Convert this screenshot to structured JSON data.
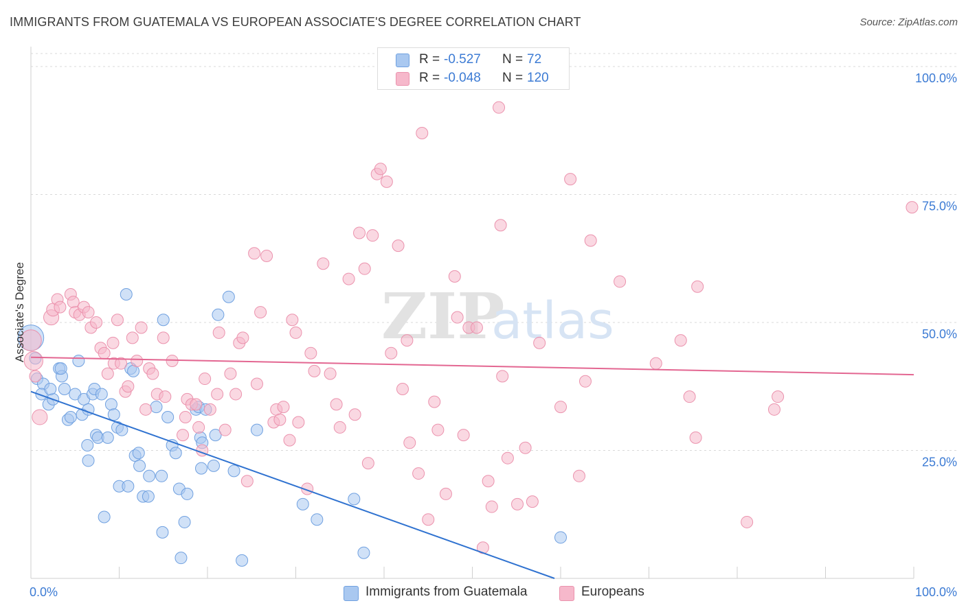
{
  "title": "IMMIGRANTS FROM GUATEMALA VS EUROPEAN ASSOCIATE'S DEGREE CORRELATION CHART",
  "source": "Source: ZipAtlas.com",
  "watermark": {
    "zip": "ZIP",
    "atlas": "atlas"
  },
  "legend": {
    "r_label": "R =",
    "n_label": "N =",
    "series1": {
      "r": "-0.527",
      "n": "72",
      "color": "#a9c8f0"
    },
    "series2": {
      "r": "-0.048",
      "n": "120",
      "color": "#f6b8cb"
    }
  },
  "bottom_legend": {
    "series1": "Immigrants from Guatemala",
    "series2": "Europeans"
  },
  "chart_data": {
    "type": "scatter",
    "xlabel": "",
    "ylabel": "Associate's Degree",
    "xlim": [
      0,
      100
    ],
    "ylim": [
      0,
      100
    ],
    "x_tick_labels": {
      "left": "0.0%",
      "right": "100.0%"
    },
    "y_tick_labels": [
      "25.0%",
      "50.0%",
      "75.0%",
      "100.0%"
    ],
    "y_ticks": [
      25,
      50,
      75,
      100
    ],
    "grid": true,
    "series": [
      {
        "name": "Immigrants from Guatemala",
        "color": "#a9c8f0",
        "stroke": "#6fa0e0",
        "trend": {
          "x0": 0,
          "y0": 36.5,
          "x1": 59.3,
          "y1": 0,
          "color": "#2f72d0"
        },
        "points": [
          [
            0,
            47,
            2.2
          ],
          [
            0.5,
            43,
            1
          ],
          [
            0.7,
            39,
            1
          ],
          [
            1.4,
            38,
            1
          ],
          [
            1.2,
            36,
            1
          ],
          [
            2,
            34,
            1
          ],
          [
            2.5,
            35,
            1
          ],
          [
            2.2,
            37,
            1
          ],
          [
            3.2,
            41,
            1
          ],
          [
            3.8,
            37,
            1
          ],
          [
            3.5,
            39.5,
            1
          ],
          [
            4.2,
            31,
            1
          ],
          [
            4.5,
            31.5,
            1
          ],
          [
            5,
            36,
            1
          ],
          [
            5.4,
            42.5,
            1
          ],
          [
            5.8,
            32,
            1
          ],
          [
            6,
            35,
            1
          ],
          [
            6.5,
            33,
            1
          ],
          [
            7,
            36,
            1
          ],
          [
            7.2,
            37,
            1
          ],
          [
            6.4,
            26,
            1
          ],
          [
            6.5,
            23,
            1
          ],
          [
            7.4,
            28,
            1
          ],
          [
            7.6,
            27.5,
            1
          ],
          [
            8,
            36,
            1
          ],
          [
            8.7,
            27.5,
            1
          ],
          [
            9.1,
            34,
            1
          ],
          [
            9.4,
            32,
            1
          ],
          [
            9.8,
            29.5,
            1
          ],
          [
            10.3,
            29,
            1
          ],
          [
            8.3,
            12,
            1
          ],
          [
            10,
            18,
            1
          ],
          [
            11,
            18,
            1
          ],
          [
            10.8,
            55.5,
            1
          ],
          [
            11.3,
            41,
            1
          ],
          [
            11.6,
            40.5,
            1
          ],
          [
            11.8,
            24,
            1
          ],
          [
            12.2,
            24.5,
            1
          ],
          [
            12.3,
            22,
            1
          ],
          [
            12.7,
            16,
            1
          ],
          [
            13.3,
            16,
            1
          ],
          [
            13.4,
            20,
            1
          ],
          [
            14.2,
            33.5,
            1
          ],
          [
            15,
            50.5,
            1
          ],
          [
            14.9,
            9,
            1
          ],
          [
            14.8,
            20,
            1
          ],
          [
            15.5,
            31.5,
            1
          ],
          [
            16,
            26,
            1
          ],
          [
            16.4,
            24.5,
            1
          ],
          [
            16.8,
            17.5,
            1
          ],
          [
            17,
            4,
            1
          ],
          [
            17.4,
            11,
            1
          ],
          [
            17.7,
            16.5,
            1
          ],
          [
            18.7,
            33,
            1
          ],
          [
            19,
            33.5,
            1
          ],
          [
            19.2,
            27.5,
            1
          ],
          [
            19.4,
            26.5,
            1
          ],
          [
            19.3,
            21.5,
            1
          ],
          [
            19.8,
            33,
            1
          ],
          [
            20.7,
            22,
            1
          ],
          [
            20.9,
            28,
            1
          ],
          [
            21.2,
            51.5,
            1
          ],
          [
            22.4,
            55,
            1
          ],
          [
            23,
            21,
            1
          ],
          [
            23.9,
            3.5,
            1
          ],
          [
            25.6,
            29,
            1
          ],
          [
            30.8,
            14.5,
            1
          ],
          [
            32.4,
            11.5,
            1
          ],
          [
            36.6,
            15.5,
            1
          ],
          [
            37.7,
            5,
            1
          ],
          [
            60,
            8,
            1
          ],
          [
            3.4,
            41,
            1
          ]
        ]
      },
      {
        "name": "Europeans",
        "color": "#f6b8cb",
        "stroke": "#eb92ad",
        "trend": {
          "x0": 0,
          "y0": 43.2,
          "x1": 100,
          "y1": 39.8,
          "color": "#e36691"
        },
        "points": [
          [
            0,
            46.5,
            1.8
          ],
          [
            0.3,
            42.5,
            1.6
          ],
          [
            0.5,
            39.5,
            1
          ],
          [
            1,
            31.5,
            1.3
          ],
          [
            2.3,
            51,
            1.3
          ],
          [
            2.5,
            52.5,
            1.1
          ],
          [
            3,
            54.5,
            1
          ],
          [
            3.3,
            53,
            1
          ],
          [
            4.5,
            55.5,
            1
          ],
          [
            4.8,
            54,
            1
          ],
          [
            5,
            52,
            1
          ],
          [
            5.5,
            51.5,
            1
          ],
          [
            6,
            53,
            1
          ],
          [
            6.5,
            52,
            1
          ],
          [
            6.8,
            49,
            1
          ],
          [
            7.4,
            50,
            1
          ],
          [
            7.9,
            45,
            1
          ],
          [
            8.3,
            44,
            1
          ],
          [
            8.7,
            40,
            1
          ],
          [
            9.3,
            46,
            1
          ],
          [
            9.4,
            42,
            1
          ],
          [
            9.8,
            50.5,
            1
          ],
          [
            10.2,
            42,
            1
          ],
          [
            10.7,
            36.5,
            1
          ],
          [
            11,
            37.5,
            1
          ],
          [
            11.5,
            47,
            1
          ],
          [
            12,
            42.5,
            1
          ],
          [
            12.5,
            49,
            1
          ],
          [
            13,
            33,
            1
          ],
          [
            13.4,
            41,
            1
          ],
          [
            13.8,
            40,
            1
          ],
          [
            14.3,
            36,
            1
          ],
          [
            15,
            47,
            1
          ],
          [
            15.2,
            35.5,
            1
          ],
          [
            16,
            42.5,
            1
          ],
          [
            17.2,
            28,
            1
          ],
          [
            17.5,
            31.5,
            1
          ],
          [
            17.7,
            35,
            1
          ],
          [
            18.2,
            34,
            1
          ],
          [
            18.7,
            34,
            1
          ],
          [
            19,
            29.5,
            1
          ],
          [
            19.4,
            25,
            1
          ],
          [
            19.7,
            39,
            1
          ],
          [
            20.3,
            33,
            1
          ],
          [
            21.3,
            48,
            1
          ],
          [
            21.1,
            36,
            1
          ],
          [
            22,
            29,
            1
          ],
          [
            22.6,
            40,
            1
          ],
          [
            23.6,
            46,
            1
          ],
          [
            23.2,
            36,
            1
          ],
          [
            24,
            47,
            1
          ],
          [
            24.5,
            19,
            1
          ],
          [
            25.3,
            63.5,
            1
          ],
          [
            25.6,
            38,
            1
          ],
          [
            26,
            52,
            1
          ],
          [
            26.7,
            63,
            1
          ],
          [
            27.5,
            30.5,
            1
          ],
          [
            27.8,
            33,
            1
          ],
          [
            28.2,
            31,
            1
          ],
          [
            28.6,
            33.5,
            1
          ],
          [
            29.3,
            27,
            1
          ],
          [
            29.6,
            50.5,
            1
          ],
          [
            30,
            48,
            1
          ],
          [
            30.3,
            30.5,
            1
          ],
          [
            31.3,
            17.5,
            1
          ],
          [
            31.7,
            44,
            1
          ],
          [
            32.1,
            40.5,
            1
          ],
          [
            33.1,
            61.5,
            1
          ],
          [
            33.9,
            40,
            1
          ],
          [
            34.6,
            34,
            1
          ],
          [
            35,
            29.5,
            1
          ],
          [
            36,
            58.5,
            1
          ],
          [
            36.7,
            32,
            1
          ],
          [
            37.2,
            67.5,
            1
          ],
          [
            37.8,
            60.5,
            1
          ],
          [
            38.2,
            22.5,
            1
          ],
          [
            38.7,
            67,
            1
          ],
          [
            39.2,
            79,
            1
          ],
          [
            39.6,
            80,
            1
          ],
          [
            40.3,
            77.5,
            1
          ],
          [
            40.8,
            44,
            1
          ],
          [
            41.6,
            65,
            1
          ],
          [
            42.1,
            37,
            1
          ],
          [
            42.6,
            46.5,
            1
          ],
          [
            42.9,
            26.5,
            1
          ],
          [
            43.9,
            20.5,
            1
          ],
          [
            44.3,
            87,
            1
          ],
          [
            45,
            11.5,
            1
          ],
          [
            45.7,
            34.5,
            1
          ],
          [
            46.1,
            29,
            1
          ],
          [
            47,
            16.5,
            1
          ],
          [
            48,
            59,
            1
          ],
          [
            48.3,
            51,
            1
          ],
          [
            49,
            28,
            1
          ],
          [
            49.6,
            49,
            1
          ],
          [
            50.5,
            49,
            1
          ],
          [
            51.2,
            6,
            1
          ],
          [
            51.8,
            19,
            1
          ],
          [
            52.2,
            14,
            1
          ],
          [
            53.2,
            69,
            1
          ],
          [
            53.4,
            39.5,
            1
          ],
          [
            54,
            23.5,
            1
          ],
          [
            55.1,
            14.5,
            1
          ],
          [
            56,
            25.5,
            1
          ],
          [
            56.8,
            15,
            1
          ],
          [
            57.6,
            46,
            1
          ],
          [
            60,
            33.5,
            1
          ],
          [
            61.1,
            78,
            1
          ],
          [
            62.1,
            20,
            1
          ],
          [
            62.8,
            38.5,
            1
          ],
          [
            63.4,
            66,
            1
          ],
          [
            66.7,
            58,
            1
          ],
          [
            70.8,
            42,
            1
          ],
          [
            73.6,
            46.5,
            1
          ],
          [
            74.6,
            35.5,
            1
          ],
          [
            75.3,
            27.5,
            1
          ],
          [
            75.5,
            57,
            1
          ],
          [
            81.1,
            11,
            1
          ],
          [
            84.2,
            33,
            1
          ],
          [
            84.6,
            35.5,
            1
          ],
          [
            99.8,
            72.5,
            1
          ],
          [
            53,
            92,
            1
          ]
        ]
      }
    ]
  }
}
